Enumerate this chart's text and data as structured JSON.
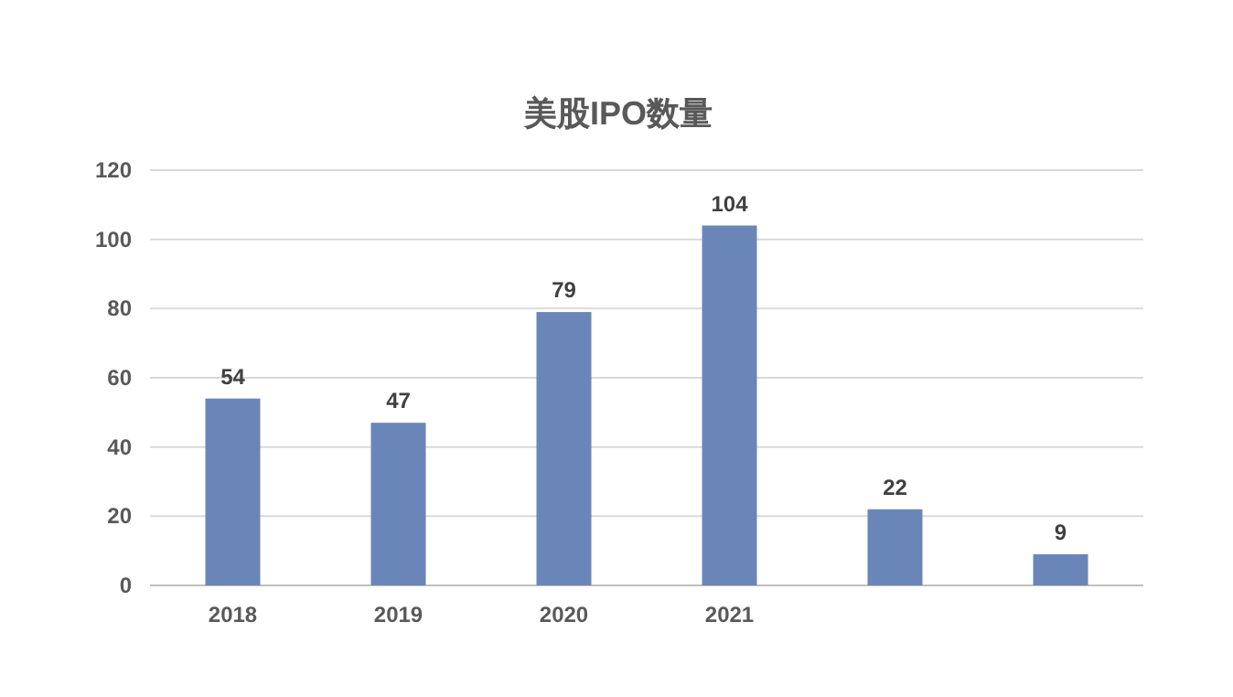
{
  "chart_data": {
    "type": "bar",
    "title": "美股IPO数量",
    "categories": [
      "2018",
      "2019",
      "2020",
      "2021",
      null,
      null
    ],
    "values": [
      54,
      47,
      79,
      104,
      22,
      9
    ],
    "color": "#6a86b8",
    "ylim": [
      0,
      120
    ],
    "yticks": [
      0,
      20,
      40,
      60,
      80,
      100,
      120
    ],
    "grid": "y",
    "data_labels": true
  }
}
